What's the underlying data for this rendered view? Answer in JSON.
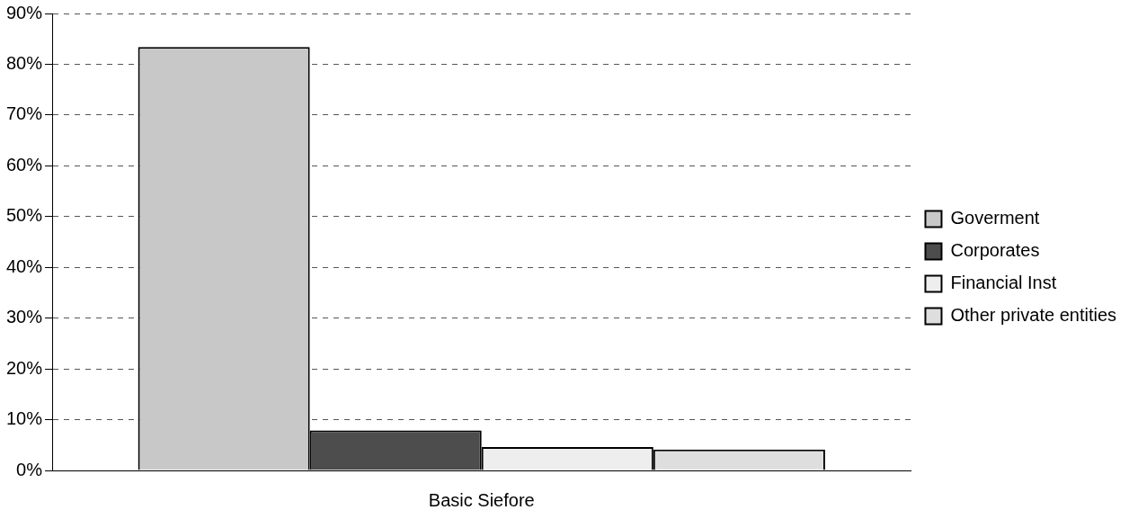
{
  "chart_data": {
    "type": "bar",
    "categories": [
      "Basic Siefore"
    ],
    "series": [
      {
        "name": "Goverment",
        "color": "#c8c8c8",
        "values": [
          83.4
        ]
      },
      {
        "name": "Corporates",
        "color": "#4d4d4d",
        "values": [
          7.9
        ]
      },
      {
        "name": "Financial Inst",
        "color": "#eeeeee",
        "values": [
          4.6
        ]
      },
      {
        "name": "Other private entities",
        "color": "#dedede",
        "values": [
          4.1
        ]
      }
    ],
    "ylim": [
      0,
      90
    ],
    "yticks": [
      {
        "value": 0,
        "label": "0%"
      },
      {
        "value": 10,
        "label": "10%"
      },
      {
        "value": 20,
        "label": "20%"
      },
      {
        "value": 30,
        "label": "30%"
      },
      {
        "value": 40,
        "label": "40%"
      },
      {
        "value": 50,
        "label": "50%"
      },
      {
        "value": 60,
        "label": "60%"
      },
      {
        "value": 70,
        "label": "70%"
      },
      {
        "value": 80,
        "label": "80%"
      },
      {
        "value": 90,
        "label": "90%"
      }
    ],
    "grid": "y",
    "legend": "right"
  }
}
